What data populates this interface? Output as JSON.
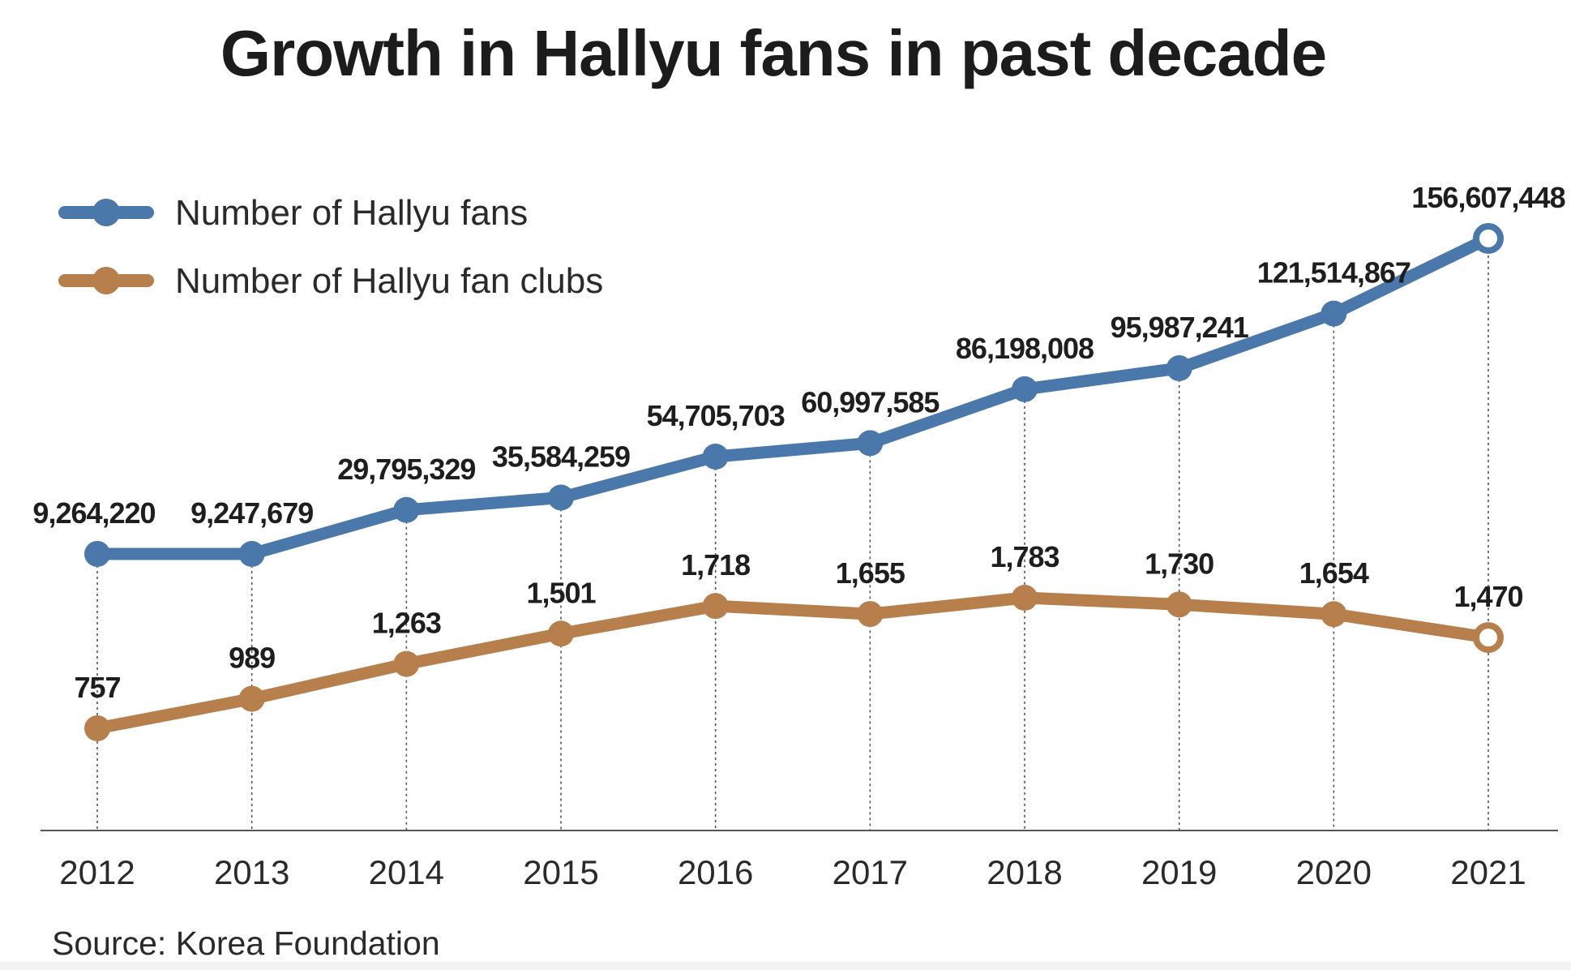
{
  "title": "Growth in Hallyu fans in past decade",
  "source": "Source: Korea Foundation",
  "chart_data": {
    "type": "line",
    "title": "Growth in Hallyu fans in past decade",
    "xlabel": "",
    "ylabel": "",
    "categories": [
      "2012",
      "2013",
      "2014",
      "2015",
      "2016",
      "2017",
      "2018",
      "2019",
      "2020",
      "2021"
    ],
    "grid": false,
    "legend_position": "top-left",
    "series": [
      {
        "name": "Number of Hallyu fans",
        "color": "#4a78ab",
        "values": [
          9264220,
          9247679,
          29795329,
          35584259,
          54705703,
          60997585,
          86198008,
          95987241,
          121514867,
          156607448
        ],
        "labels": [
          "9,264,220",
          "9,247,679",
          "29,795,329",
          "35,584,259",
          "54,705,703",
          "60,997,585",
          "86,198,008",
          "95,987,241",
          "121,514,867",
          "156,607,448"
        ]
      },
      {
        "name": "Number of Hallyu fan clubs",
        "color": "#b77f4c",
        "values": [
          757,
          989,
          1263,
          1501,
          1718,
          1655,
          1783,
          1730,
          1654,
          1470
        ],
        "labels": [
          "757",
          "989",
          "1,263",
          "1,501",
          "1,718",
          "1,655",
          "1,783",
          "1,730",
          "1,654",
          "1,470"
        ]
      }
    ]
  }
}
